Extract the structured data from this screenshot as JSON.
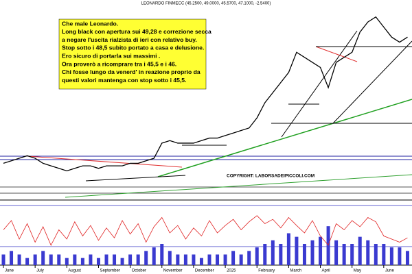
{
  "chart_data": {
    "type": "line",
    "title": "LEONARDO FINMECC (45.2500, 49.0000, 45.5700, 47.1000, -2.5400)",
    "annotation": [
      "Che male Leonardo.",
      "Long black con apertura sui 49,28 e correzione secca",
      "a negare l'uscita rialzista di ieri con relativo buy.",
      "Stop sotto i 48,5 subito portato a casa e delusione.",
      "Ero sicuro di portarla sui massimi .",
      "Ora proverò a ricomprare tra i 45,5 e i 46.",
      "Chi fosse lungo da venerd' in reazione proprio da",
      "questi valori mantenga con stop sotto i 45,5."
    ],
    "copyright": "COPYRIGHT: LABORSADEIPICCOLI.COM",
    "categories": [
      "June",
      null,
      null,
      null,
      "July",
      null,
      null,
      null,
      "August",
      null,
      null,
      null,
      "September",
      null,
      null,
      null,
      "October",
      null,
      null,
      null,
      "November",
      null,
      null,
      null,
      "December",
      null,
      null,
      null,
      "2025",
      null,
      null,
      null,
      "February",
      null,
      null,
      null,
      "March",
      null,
      null,
      null,
      "April",
      null,
      null,
      null,
      "May",
      null,
      null,
      null,
      "June",
      null,
      null,
      null
    ],
    "values": [
      22,
      22.5,
      23,
      23.5,
      23,
      22,
      21.5,
      21,
      20.5,
      21,
      21.5,
      21.5,
      21,
      21.5,
      21.5,
      21.5,
      22,
      22,
      22.5,
      23,
      26,
      26.5,
      26,
      26,
      26,
      26.5,
      27,
      27,
      27.5,
      28,
      28.5,
      29,
      31,
      34,
      36,
      38,
      40,
      44,
      43,
      42,
      41,
      37,
      42,
      43,
      44,
      48,
      50,
      51,
      49,
      47,
      46,
      47
    ],
    "color": "#000000",
    "ylim": [
      15,
      53
    ],
    "rsi": {
      "color": "#e02020",
      "ylim": [
        0,
        100
      ],
      "values": [
        55,
        70,
        40,
        65,
        35,
        60,
        30,
        55,
        40,
        68,
        45,
        62,
        38,
        58,
        42,
        70,
        48,
        65,
        35,
        60,
        75,
        50,
        62,
        40,
        58,
        45,
        70,
        50,
        62,
        72,
        55,
        68,
        78,
        65,
        72,
        58,
        75,
        62,
        50,
        70,
        45,
        30,
        65,
        55,
        70,
        60,
        75,
        68,
        45,
        40,
        35,
        42
      ]
    },
    "volume": {
      "color": "#3a3ad0",
      "ylim": [
        0,
        12
      ],
      "values": [
        3,
        4,
        3,
        2,
        3,
        4,
        3,
        3,
        2,
        3,
        2,
        3,
        2,
        3,
        3,
        2,
        3,
        3,
        4,
        5,
        6,
        4,
        3,
        3,
        3,
        2,
        3,
        3,
        3,
        4,
        3,
        4,
        5,
        6,
        7,
        6,
        9,
        8,
        6,
        7,
        8,
        11,
        7,
        6,
        6,
        8,
        7,
        6,
        6,
        5,
        5,
        4
      ]
    }
  }
}
